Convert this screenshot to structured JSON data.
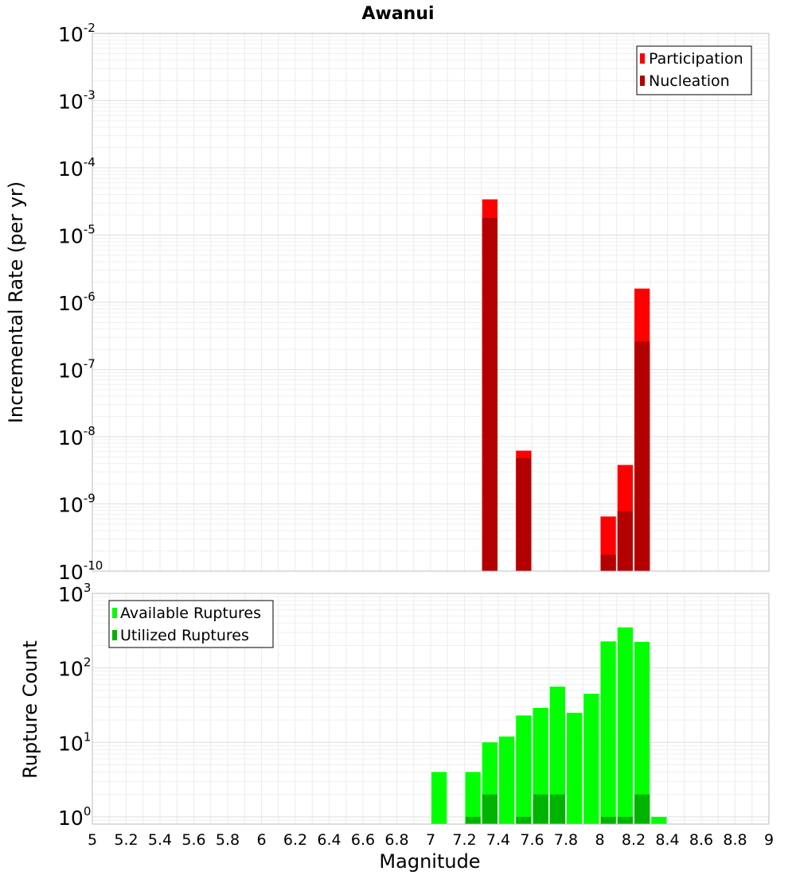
{
  "chart_data": [
    {
      "type": "bar",
      "title": "Awanui",
      "xlabel": "",
      "ylabel": "Incremental Rate (per yr)",
      "yscale": "log",
      "xlim": [
        5,
        9
      ],
      "ylim": [
        1e-10,
        0.01
      ],
      "y_ticks": [
        {
          "base": "10",
          "exp": "-10"
        },
        {
          "base": "10",
          "exp": "-9"
        },
        {
          "base": "10",
          "exp": "-8"
        },
        {
          "base": "10",
          "exp": "-7"
        },
        {
          "base": "10",
          "exp": "-6"
        },
        {
          "base": "10",
          "exp": "-5"
        },
        {
          "base": "10",
          "exp": "-4"
        },
        {
          "base": "10",
          "exp": "-3"
        },
        {
          "base": "10",
          "exp": "-2"
        }
      ],
      "grid": true,
      "legend_position": "top-right",
      "bin_width": 0.1,
      "series": [
        {
          "name": "Participation",
          "color": "#ff0000",
          "x": [
            7.35,
            7.55,
            8.05,
            8.15,
            8.25
          ],
          "values": [
            3.4e-05,
            6.2e-09,
            6.5e-10,
            3.8e-09,
            1.6e-06
          ]
        },
        {
          "name": "Nucleation",
          "color": "#b30000",
          "x": [
            7.35,
            7.55,
            8.05,
            8.15,
            8.25
          ],
          "values": [
            1.8e-05,
            4.8e-09,
            1.75e-10,
            7.8e-10,
            2.6e-07
          ]
        }
      ]
    },
    {
      "type": "bar",
      "title": "",
      "xlabel": "Magnitude",
      "ylabel": "Rupture Count",
      "yscale": "log",
      "xlim": [
        5,
        9
      ],
      "ylim": [
        0.8,
        1000
      ],
      "y_ticks": [
        {
          "base": "10",
          "exp": "0"
        },
        {
          "base": "10",
          "exp": "1"
        },
        {
          "base": "10",
          "exp": "2"
        },
        {
          "base": "10",
          "exp": "3"
        }
      ],
      "x_tick_labels": [
        "5",
        "5.2",
        "5.4",
        "5.6",
        "5.8",
        "6",
        "6.2",
        "6.4",
        "6.6",
        "6.8",
        "7",
        "7.2",
        "7.4",
        "7.6",
        "7.8",
        "8",
        "8.2",
        "8.4",
        "8.6",
        "8.8",
        "9"
      ],
      "grid": true,
      "legend_position": "top-left",
      "bin_width": 0.1,
      "series": [
        {
          "name": "Available Ruptures",
          "color": "#00ff00",
          "x": [
            7.05,
            7.25,
            7.35,
            7.45,
            7.55,
            7.65,
            7.75,
            7.85,
            7.95,
            8.05,
            8.15,
            8.25,
            8.35
          ],
          "values": [
            4,
            4,
            10,
            12,
            23,
            29,
            56,
            25,
            45,
            227,
            350,
            223,
            1
          ]
        },
        {
          "name": "Utilized Ruptures",
          "color": "#00b300",
          "x": [
            7.25,
            7.35,
            7.55,
            7.65,
            7.75,
            8.05,
            8.15,
            8.25
          ],
          "values": [
            1,
            2,
            1,
            2,
            2,
            1,
            1,
            2
          ]
        }
      ]
    }
  ]
}
